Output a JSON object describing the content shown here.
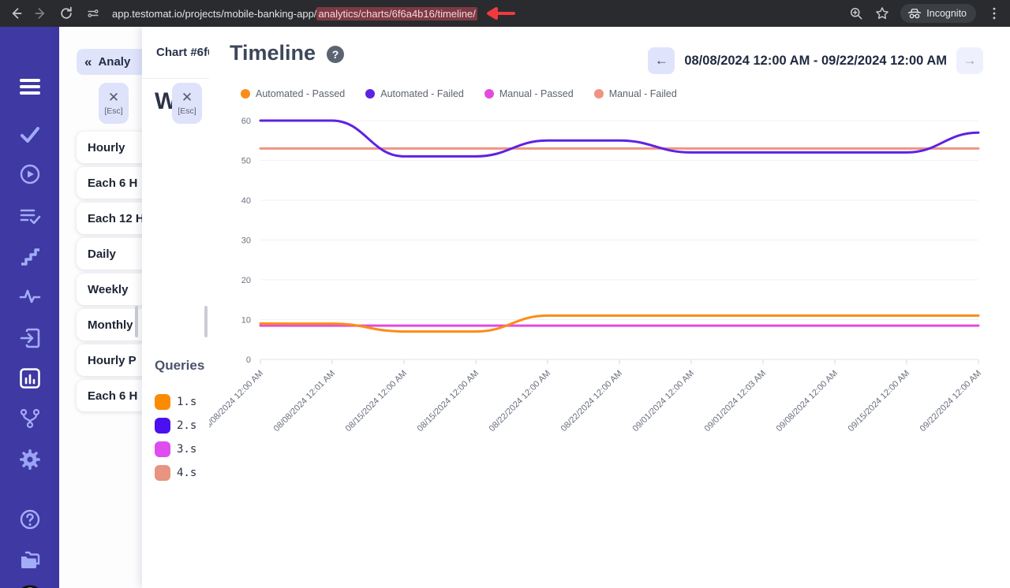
{
  "browser": {
    "url_prefix": "app.testomat.io/projects/mobile-banking-app/",
    "url_highlight": "analytics/charts/6f6a4b16/timeline/",
    "incognito_label": "Incognito",
    "annotation_arrow_color": "#f03a3f",
    "highlight_bg": "#7d3944"
  },
  "sidebar": {
    "icons": [
      "menu-icon",
      "check-icon",
      "play-circle-icon",
      "list-check-icon",
      "steps-icon",
      "pulse-icon",
      "sign-in-icon",
      "bar-chart-icon",
      "branch-icon",
      "gear-icon",
      "help-icon",
      "folders-icon",
      "testomat-logo"
    ]
  },
  "drawer_periods": {
    "back_label": "Analy",
    "esc_label": "[Esc]",
    "items": [
      "Hourly",
      "Each 6 H",
      "Each 12 H",
      "Daily",
      "Weekly",
      "Monthly",
      "Hourly P",
      "Each 6 H"
    ]
  },
  "drawer_chart": {
    "title": "Chart #6f6",
    "esc_label": "[Esc]",
    "heading": "W",
    "queries_label": "Queries",
    "queries": [
      {
        "label": "1.s",
        "color": "#fb8b00"
      },
      {
        "label": "2.s",
        "color": "#4a10f0"
      },
      {
        "label": "3.s",
        "color": "#dd4df0"
      },
      {
        "label": "4.s",
        "color": "#e89480"
      }
    ]
  },
  "main": {
    "title": "Timeline",
    "date_range": "08/08/2024 12:00 AM - 09/22/2024 12:00 AM"
  },
  "chart_data": {
    "type": "line",
    "title": "Timeline",
    "x": [
      "08/08/2024 12:00 AM",
      "08/08/2024 12:01 AM",
      "08/15/2024 12:00 AM",
      "08/15/2024 12:00 AM",
      "08/22/2024 12:00 AM",
      "08/22/2024 12:00 AM",
      "09/01/2024 12:00 AM",
      "09/01/2024 12:03 AM",
      "09/08/2024 12:00 AM",
      "09/15/2024 12:00 AM",
      "09/22/2024 12:00 AM"
    ],
    "series": [
      {
        "name": "Automated - Passed",
        "color": "#fb8c16",
        "values": [
          9,
          9,
          7,
          7,
          11,
          11,
          11,
          11,
          11,
          11,
          11
        ]
      },
      {
        "name": "Automated - Failed",
        "color": "#5e22e3",
        "values": [
          60,
          60,
          51,
          51,
          55,
          55,
          52,
          52,
          52,
          52,
          57
        ]
      },
      {
        "name": "Manual - Passed",
        "color": "#e44ae0",
        "values": [
          8.5,
          8.5,
          8.5,
          8.5,
          8.5,
          8.5,
          8.5,
          8.5,
          8.5,
          8.5,
          8.5
        ]
      },
      {
        "name": "Manual - Failed",
        "color": "#f09383",
        "values": [
          53,
          53,
          53,
          53,
          53,
          53,
          53,
          53,
          53,
          53,
          53
        ]
      }
    ],
    "ylim": [
      0,
      60
    ],
    "yticks": [
      0,
      10,
      20,
      30,
      40,
      50,
      60
    ],
    "legend_position": "top",
    "grid": true
  }
}
